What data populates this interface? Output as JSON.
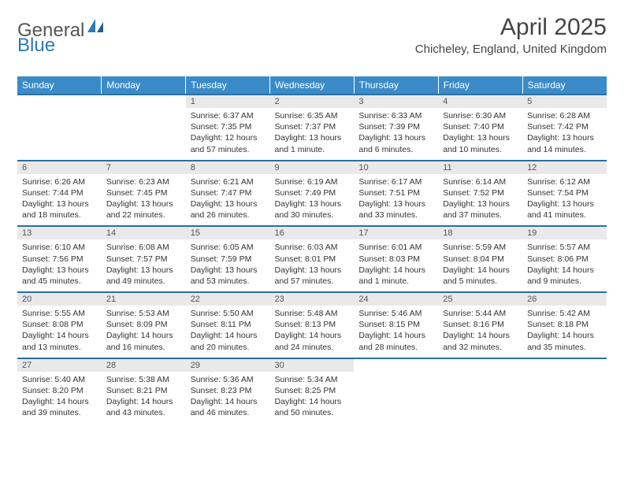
{
  "brand": {
    "part1": "General",
    "part2": "Blue"
  },
  "title": "April 2025",
  "location": "Chicheley, England, United Kingdom",
  "colors": {
    "header_bg": "#3b8bc9",
    "row_divider": "#2a6fa5",
    "daynum_bg": "#e9e9e9",
    "brand_blue": "#2a7ab9",
    "text": "#333333"
  },
  "weekdays": [
    "Sunday",
    "Monday",
    "Tuesday",
    "Wednesday",
    "Thursday",
    "Friday",
    "Saturday"
  ],
  "weeks": [
    [
      {
        "n": "",
        "sr": "",
        "ss": "",
        "dl": ""
      },
      {
        "n": "",
        "sr": "",
        "ss": "",
        "dl": ""
      },
      {
        "n": "1",
        "sr": "Sunrise: 6:37 AM",
        "ss": "Sunset: 7:35 PM",
        "dl": "Daylight: 12 hours and 57 minutes."
      },
      {
        "n": "2",
        "sr": "Sunrise: 6:35 AM",
        "ss": "Sunset: 7:37 PM",
        "dl": "Daylight: 13 hours and 1 minute."
      },
      {
        "n": "3",
        "sr": "Sunrise: 6:33 AM",
        "ss": "Sunset: 7:39 PM",
        "dl": "Daylight: 13 hours and 6 minutes."
      },
      {
        "n": "4",
        "sr": "Sunrise: 6:30 AM",
        "ss": "Sunset: 7:40 PM",
        "dl": "Daylight: 13 hours and 10 minutes."
      },
      {
        "n": "5",
        "sr": "Sunrise: 6:28 AM",
        "ss": "Sunset: 7:42 PM",
        "dl": "Daylight: 13 hours and 14 minutes."
      }
    ],
    [
      {
        "n": "6",
        "sr": "Sunrise: 6:26 AM",
        "ss": "Sunset: 7:44 PM",
        "dl": "Daylight: 13 hours and 18 minutes."
      },
      {
        "n": "7",
        "sr": "Sunrise: 6:23 AM",
        "ss": "Sunset: 7:45 PM",
        "dl": "Daylight: 13 hours and 22 minutes."
      },
      {
        "n": "8",
        "sr": "Sunrise: 6:21 AM",
        "ss": "Sunset: 7:47 PM",
        "dl": "Daylight: 13 hours and 26 minutes."
      },
      {
        "n": "9",
        "sr": "Sunrise: 6:19 AM",
        "ss": "Sunset: 7:49 PM",
        "dl": "Daylight: 13 hours and 30 minutes."
      },
      {
        "n": "10",
        "sr": "Sunrise: 6:17 AM",
        "ss": "Sunset: 7:51 PM",
        "dl": "Daylight: 13 hours and 33 minutes."
      },
      {
        "n": "11",
        "sr": "Sunrise: 6:14 AM",
        "ss": "Sunset: 7:52 PM",
        "dl": "Daylight: 13 hours and 37 minutes."
      },
      {
        "n": "12",
        "sr": "Sunrise: 6:12 AM",
        "ss": "Sunset: 7:54 PM",
        "dl": "Daylight: 13 hours and 41 minutes."
      }
    ],
    [
      {
        "n": "13",
        "sr": "Sunrise: 6:10 AM",
        "ss": "Sunset: 7:56 PM",
        "dl": "Daylight: 13 hours and 45 minutes."
      },
      {
        "n": "14",
        "sr": "Sunrise: 6:08 AM",
        "ss": "Sunset: 7:57 PM",
        "dl": "Daylight: 13 hours and 49 minutes."
      },
      {
        "n": "15",
        "sr": "Sunrise: 6:05 AM",
        "ss": "Sunset: 7:59 PM",
        "dl": "Daylight: 13 hours and 53 minutes."
      },
      {
        "n": "16",
        "sr": "Sunrise: 6:03 AM",
        "ss": "Sunset: 8:01 PM",
        "dl": "Daylight: 13 hours and 57 minutes."
      },
      {
        "n": "17",
        "sr": "Sunrise: 6:01 AM",
        "ss": "Sunset: 8:03 PM",
        "dl": "Daylight: 14 hours and 1 minute."
      },
      {
        "n": "18",
        "sr": "Sunrise: 5:59 AM",
        "ss": "Sunset: 8:04 PM",
        "dl": "Daylight: 14 hours and 5 minutes."
      },
      {
        "n": "19",
        "sr": "Sunrise: 5:57 AM",
        "ss": "Sunset: 8:06 PM",
        "dl": "Daylight: 14 hours and 9 minutes."
      }
    ],
    [
      {
        "n": "20",
        "sr": "Sunrise: 5:55 AM",
        "ss": "Sunset: 8:08 PM",
        "dl": "Daylight: 14 hours and 13 minutes."
      },
      {
        "n": "21",
        "sr": "Sunrise: 5:53 AM",
        "ss": "Sunset: 8:09 PM",
        "dl": "Daylight: 14 hours and 16 minutes."
      },
      {
        "n": "22",
        "sr": "Sunrise: 5:50 AM",
        "ss": "Sunset: 8:11 PM",
        "dl": "Daylight: 14 hours and 20 minutes."
      },
      {
        "n": "23",
        "sr": "Sunrise: 5:48 AM",
        "ss": "Sunset: 8:13 PM",
        "dl": "Daylight: 14 hours and 24 minutes."
      },
      {
        "n": "24",
        "sr": "Sunrise: 5:46 AM",
        "ss": "Sunset: 8:15 PM",
        "dl": "Daylight: 14 hours and 28 minutes."
      },
      {
        "n": "25",
        "sr": "Sunrise: 5:44 AM",
        "ss": "Sunset: 8:16 PM",
        "dl": "Daylight: 14 hours and 32 minutes."
      },
      {
        "n": "26",
        "sr": "Sunrise: 5:42 AM",
        "ss": "Sunset: 8:18 PM",
        "dl": "Daylight: 14 hours and 35 minutes."
      }
    ],
    [
      {
        "n": "27",
        "sr": "Sunrise: 5:40 AM",
        "ss": "Sunset: 8:20 PM",
        "dl": "Daylight: 14 hours and 39 minutes."
      },
      {
        "n": "28",
        "sr": "Sunrise: 5:38 AM",
        "ss": "Sunset: 8:21 PM",
        "dl": "Daylight: 14 hours and 43 minutes."
      },
      {
        "n": "29",
        "sr": "Sunrise: 5:36 AM",
        "ss": "Sunset: 8:23 PM",
        "dl": "Daylight: 14 hours and 46 minutes."
      },
      {
        "n": "30",
        "sr": "Sunrise: 5:34 AM",
        "ss": "Sunset: 8:25 PM",
        "dl": "Daylight: 14 hours and 50 minutes."
      },
      {
        "n": "",
        "sr": "",
        "ss": "",
        "dl": ""
      },
      {
        "n": "",
        "sr": "",
        "ss": "",
        "dl": ""
      },
      {
        "n": "",
        "sr": "",
        "ss": "",
        "dl": ""
      }
    ]
  ]
}
